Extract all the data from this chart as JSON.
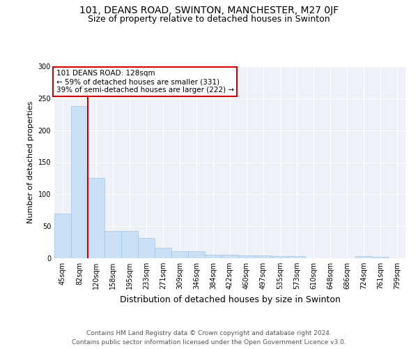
{
  "title1": "101, DEANS ROAD, SWINTON, MANCHESTER, M27 0JF",
  "title2": "Size of property relative to detached houses in Swinton",
  "xlabel": "Distribution of detached houses by size in Swinton",
  "ylabel": "Number of detached properties",
  "categories": [
    "45sqm",
    "82sqm",
    "120sqm",
    "158sqm",
    "195sqm",
    "233sqm",
    "271sqm",
    "309sqm",
    "346sqm",
    "384sqm",
    "422sqm",
    "460sqm",
    "497sqm",
    "535sqm",
    "573sqm",
    "610sqm",
    "648sqm",
    "686sqm",
    "724sqm",
    "761sqm",
    "799sqm"
  ],
  "values": [
    70,
    238,
    126,
    43,
    43,
    32,
    16,
    11,
    11,
    6,
    6,
    4,
    4,
    3,
    3,
    0,
    0,
    0,
    3,
    2,
    0
  ],
  "bar_color": "#cce0f5",
  "bar_edge_color": "#a0c4e8",
  "vline_color": "#cc0000",
  "annotation_text": "101 DEANS ROAD: 128sqm\n← 59% of detached houses are smaller (331)\n39% of semi-detached houses are larger (222) →",
  "annotation_box_color": "#ffffff",
  "annotation_box_edge": "#cc0000",
  "footer": "Contains HM Land Registry data © Crown copyright and database right 2024.\nContains public sector information licensed under the Open Government Licence v3.0.",
  "ylim": [
    0,
    300
  ],
  "background_color": "#eef2f8",
  "fig_background": "#ffffff"
}
